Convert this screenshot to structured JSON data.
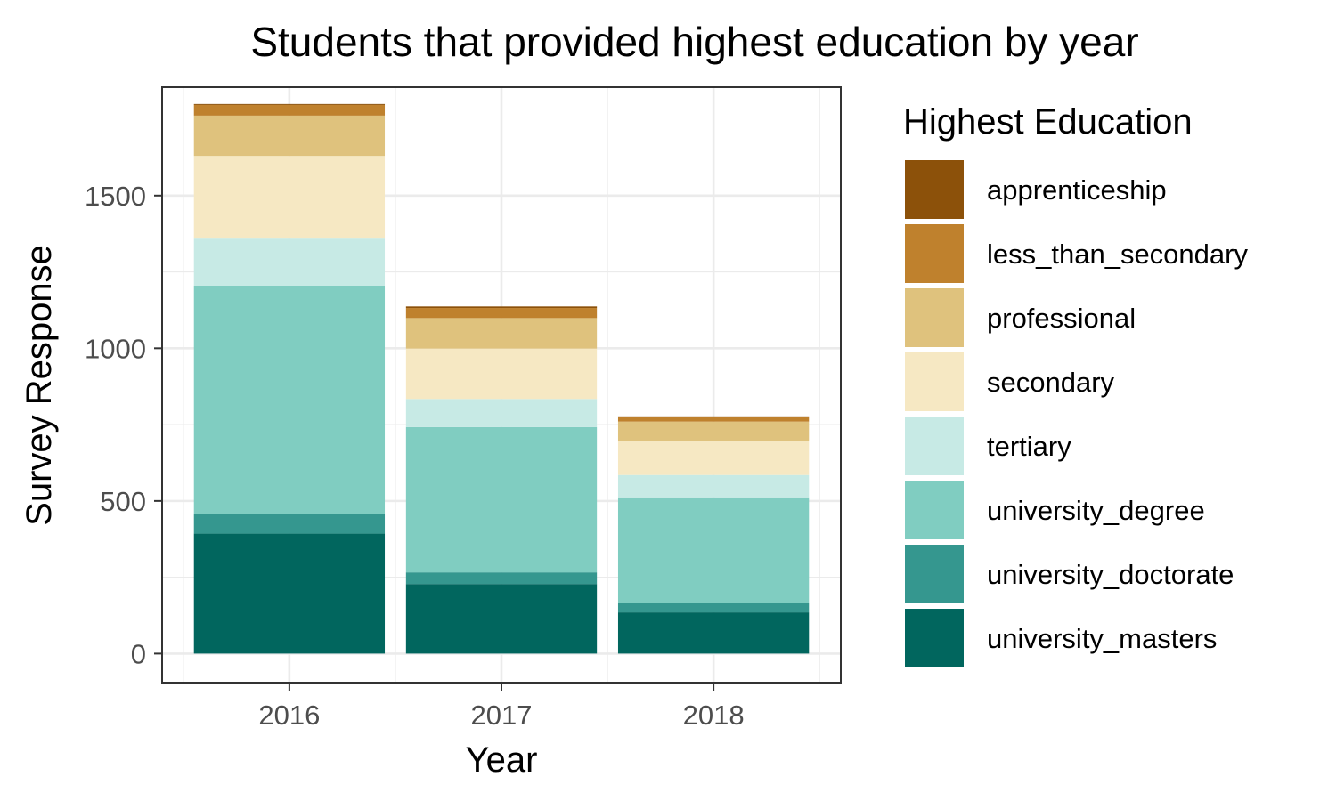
{
  "chart_data": {
    "type": "bar",
    "stacked": true,
    "title": "Students that provided highest education by year",
    "xlabel": "Year",
    "ylabel": "Survey Response",
    "categories": [
      "2016",
      "2017",
      "2018"
    ],
    "ylim": [
      -95,
      1855
    ],
    "yticks": [
      0,
      500,
      1000,
      1500
    ],
    "ytick_labels": [
      "0",
      "500",
      "1000",
      "1500"
    ],
    "grid": true,
    "legend": {
      "title": "Highest Education",
      "position": "right"
    },
    "series": [
      {
        "name": "university_masters",
        "color": "#01665E",
        "values": [
          393,
          228,
          135
        ]
      },
      {
        "name": "university_doctorate",
        "color": "#35978F",
        "values": [
          65,
          38,
          30
        ]
      },
      {
        "name": "university_degree",
        "color": "#80CDC1",
        "values": [
          747,
          476,
          347
        ]
      },
      {
        "name": "tertiary",
        "color": "#C7EAE5",
        "values": [
          157,
          92,
          73
        ]
      },
      {
        "name": "secondary",
        "color": "#F6E8C3",
        "values": [
          268,
          165,
          110
        ]
      },
      {
        "name": "professional",
        "color": "#DFC27D",
        "values": [
          132,
          100,
          65
        ]
      },
      {
        "name": "less_than_secondary",
        "color": "#BF812D",
        "values": [
          35,
          33,
          15
        ]
      },
      {
        "name": "apprenticeship",
        "color": "#8C510A",
        "values": [
          3,
          5,
          2
        ]
      }
    ]
  }
}
